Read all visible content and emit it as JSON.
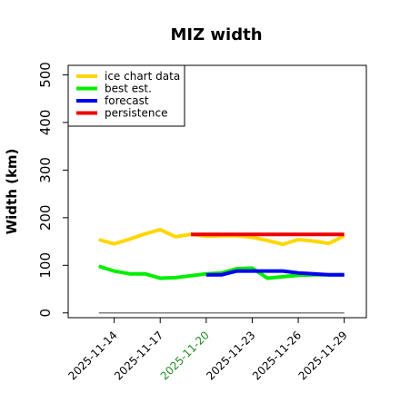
{
  "chart_data": {
    "type": "line",
    "title": "MIZ width",
    "xlabel": "",
    "ylabel": "Width (km)",
    "ylim": [
      -10,
      520
    ],
    "yticks": [
      0,
      100,
      200,
      300,
      400,
      500
    ],
    "xticks": [
      "2025-11-14",
      "2025-11-17",
      "2025-11-20",
      "2025-11-23",
      "2025-11-26",
      "2025-11-29"
    ],
    "xtick_colors": [
      "#000000",
      "#000000",
      "#228b22",
      "#000000",
      "#000000",
      "#000000"
    ],
    "grid": false,
    "legend_position": "top-left",
    "reference_line": {
      "y": 0,
      "color": "#808080"
    },
    "series": [
      {
        "name": "ice chart data",
        "color": "#ffd700",
        "x": [
          "2025-11-13",
          "2025-11-14",
          "2025-11-15",
          "2025-11-16",
          "2025-11-17",
          "2025-11-18",
          "2025-11-19",
          "2025-11-20",
          "2025-11-21",
          "2025-11-22",
          "2025-11-23",
          "2025-11-24",
          "2025-11-25",
          "2025-11-26",
          "2025-11-27",
          "2025-11-28",
          "2025-11-29"
        ],
        "values": [
          154,
          145,
          155,
          166,
          175,
          160,
          165,
          161,
          162,
          162,
          159,
          152,
          144,
          154,
          151,
          146,
          162
        ]
      },
      {
        "name": "best est.",
        "color": "#00ee00",
        "x": [
          "2025-11-13",
          "2025-11-14",
          "2025-11-15",
          "2025-11-16",
          "2025-11-17",
          "2025-11-18",
          "2025-11-19",
          "2025-11-20",
          "2025-11-21",
          "2025-11-22",
          "2025-11-23",
          "2025-11-24",
          "2025-11-25",
          "2025-11-26",
          "2025-11-27",
          "2025-11-28",
          "2025-11-29"
        ],
        "values": [
          98,
          88,
          82,
          82,
          73,
          74,
          78,
          82,
          84,
          93,
          94,
          73,
          76,
          79,
          80,
          80,
          80
        ]
      },
      {
        "name": "forecast",
        "color": "#0000ee",
        "x": [
          "2025-11-20",
          "2025-11-21",
          "2025-11-22",
          "2025-11-23",
          "2025-11-24",
          "2025-11-25",
          "2025-11-26",
          "2025-11-27",
          "2025-11-28",
          "2025-11-29"
        ],
        "values": [
          80,
          80,
          88,
          88,
          88,
          88,
          84,
          82,
          80,
          80
        ]
      },
      {
        "name": "persistence",
        "color": "#ee0000",
        "x": [
          "2025-11-19",
          "2025-11-20",
          "2025-11-21",
          "2025-11-22",
          "2025-11-23",
          "2025-11-24",
          "2025-11-25",
          "2025-11-26",
          "2025-11-27",
          "2025-11-28",
          "2025-11-29"
        ],
        "values": [
          165,
          165,
          165,
          165,
          165,
          165,
          165,
          165,
          165,
          165,
          165
        ]
      }
    ]
  }
}
